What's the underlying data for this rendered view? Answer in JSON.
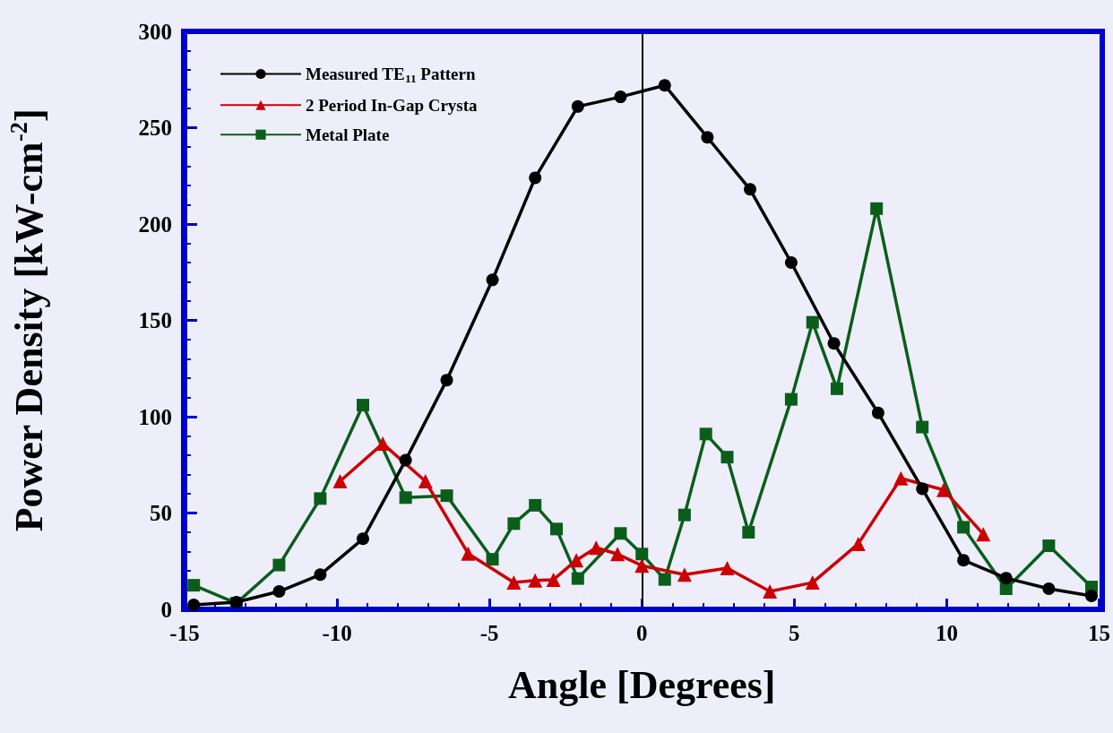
{
  "chart_data": {
    "type": "line",
    "xlabel": "Angle [Degrees]",
    "ylabel": "Power Density [kW-cm$^{-2}$]",
    "xlim": [
      -15,
      15
    ],
    "xticks": [
      -15,
      -10,
      -5,
      0,
      5,
      10,
      15
    ],
    "ylim": [
      0,
      300
    ],
    "yticks": [
      0,
      50,
      100,
      150,
      200,
      250,
      300
    ],
    "grid": false,
    "legend": "top left",
    "line_style": "solid",
    "ref_lines": [
      {
        "axis": "x",
        "value": 0,
        "color": "#000000"
      }
    ],
    "series": [
      {
        "name": "Measured TE$_{11}$ Pattern",
        "color": "#000000",
        "marker": "circle",
        "x": [
          -14.7,
          -13.3,
          -11.9,
          -10.55,
          -9.15,
          -7.75,
          -6.4,
          -4.9,
          -3.5,
          -2.1,
          -0.7,
          0.75,
          2.15,
          3.55,
          4.9,
          6.3,
          7.75,
          9.2,
          10.55,
          11.95,
          13.35,
          14.75
        ],
        "values": [
          2.3,
          3.7,
          9.3,
          18,
          36.6,
          77.4,
          119,
          171,
          224,
          261,
          266,
          272,
          245,
          218,
          180,
          138,
          102,
          62.6,
          25.5,
          16.2,
          10.7,
          7
        ]
      },
      {
        "name": "2 Period In-Gap Crysta",
        "color": "#cc0000",
        "marker": "triangle",
        "x": [
          -9.9,
          -8.5,
          -7.1,
          -5.7,
          -4.2,
          -3.5,
          -2.9,
          -2.15,
          -1.5,
          -0.8,
          0,
          1.4,
          2.8,
          4.2,
          5.6,
          7.1,
          8.5,
          9.9,
          11.2
        ],
        "values": [
          66.5,
          86,
          66.5,
          29,
          14,
          15,
          15.4,
          25.5,
          32,
          28.7,
          22.7,
          18,
          21.4,
          9.3,
          13.9,
          34,
          68,
          62,
          39
        ]
      },
      {
        "name": "Metal Plate",
        "color": "#0a5e1a",
        "marker": "square",
        "x": [
          -14.7,
          -13.3,
          -11.9,
          -10.55,
          -9.15,
          -7.75,
          -6.4,
          -4.9,
          -4.2,
          -3.5,
          -2.8,
          -2.1,
          -0.7,
          0,
          0.75,
          1.4,
          2.1,
          2.8,
          3.5,
          4.9,
          5.6,
          6.4,
          7.7,
          9.2,
          10.55,
          11.95,
          13.35,
          14.75
        ],
        "values": [
          12.5,
          3.2,
          23,
          57.5,
          106,
          58,
          59,
          26,
          44.5,
          54,
          41.7,
          16,
          39.4,
          28.7,
          15.5,
          49,
          91,
          79,
          40,
          109,
          149,
          114.5,
          208,
          94.6,
          42.6,
          10.7,
          33,
          11.6
        ]
      }
    ]
  }
}
